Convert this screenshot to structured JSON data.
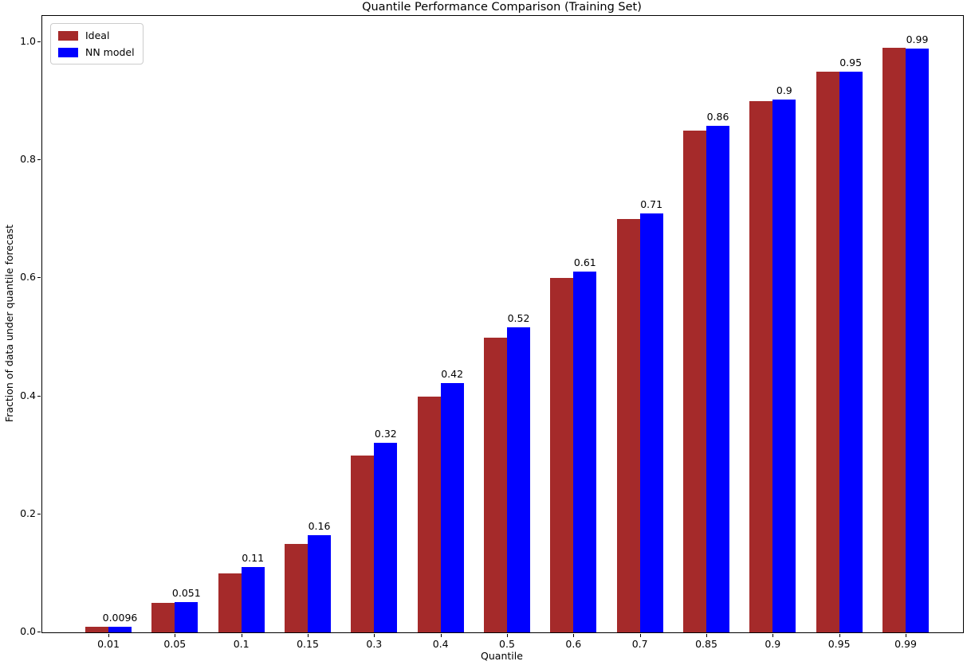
{
  "chart_data": {
    "type": "bar",
    "title": "Quantile Performance Comparison (Training Set)",
    "xlabel": "Quantile",
    "ylabel": "Fraction of data under quantile forecast",
    "categories": [
      "0.01",
      "0.05",
      "0.1",
      "0.15",
      "0.3",
      "0.4",
      "0.5",
      "0.6",
      "0.7",
      "0.85",
      "0.9",
      "0.95",
      "0.99"
    ],
    "series": [
      {
        "name": "Ideal",
        "color": "#a52a2a",
        "values": [
          0.01,
          0.05,
          0.1,
          0.15,
          0.3,
          0.4,
          0.5,
          0.6,
          0.7,
          0.85,
          0.9,
          0.95,
          0.99
        ]
      },
      {
        "name": "NN model",
        "color": "#0000ff",
        "values": [
          0.0096,
          0.051,
          0.111,
          0.164,
          0.321,
          0.423,
          0.517,
          0.611,
          0.71,
          0.858,
          0.903,
          0.95,
          0.989
        ],
        "bar_labels": [
          "0.0096",
          "0.051",
          "0.11",
          "0.16",
          "0.32",
          "0.42",
          "0.52",
          "0.61",
          "0.71",
          "0.86",
          "0.9",
          "0.95",
          "0.99"
        ]
      }
    ],
    "yticks": [
      "0.0",
      "0.2",
      "0.4",
      "0.6",
      "0.8",
      "1.0"
    ],
    "ylim": [
      0,
      1.045
    ],
    "grid": false,
    "legend_position": "upper left"
  }
}
